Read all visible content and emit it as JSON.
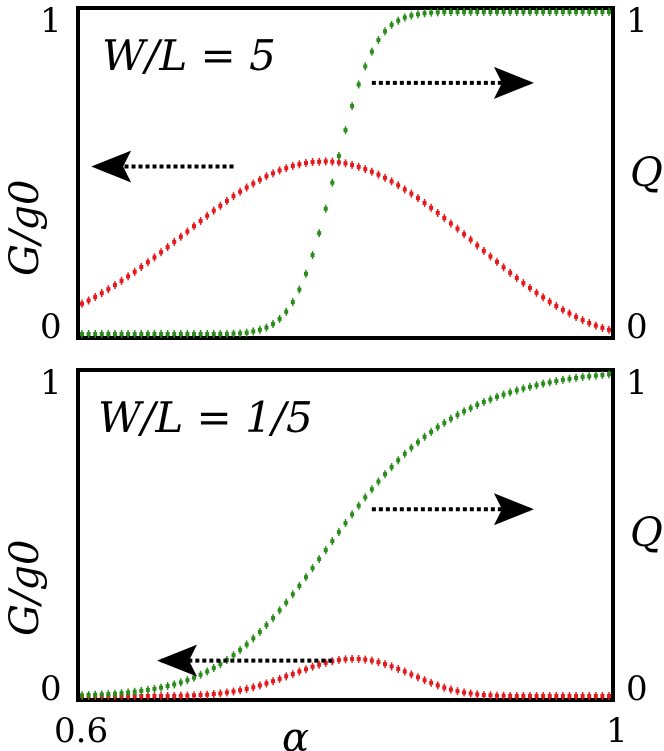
{
  "figure": {
    "x_ticks": [
      "0.6",
      "1"
    ],
    "x_label": "α",
    "xlim": [
      0.6,
      1.0
    ]
  },
  "chart_data": [
    {
      "type": "scatter",
      "panel": "top",
      "annotation": "W/L = 5",
      "ylabel_left": "G/g0",
      "ylabel_right": "Q",
      "left_ticks": [
        "0",
        "1"
      ],
      "right_ticks": [
        "0",
        "1"
      ],
      "ylim": [
        0,
        1
      ],
      "colors": {
        "G": "#e41a1c",
        "Q": "#2a8c1a"
      },
      "arrows": [
        {
          "series": "G",
          "direction": "left",
          "from": [
            0.715,
            0.52
          ],
          "to": [
            0.61,
            0.52
          ]
        },
        {
          "series": "Q",
          "direction": "right",
          "from": [
            0.82,
            0.78
          ],
          "to": [
            0.94,
            0.78
          ]
        }
      ],
      "series": [
        {
          "key": "G",
          "x": [
            0.6,
            0.605,
            0.61,
            0.615,
            0.62,
            0.625,
            0.63,
            0.635,
            0.64,
            0.645,
            0.65,
            0.655,
            0.66,
            0.665,
            0.67,
            0.675,
            0.68,
            0.685,
            0.69,
            0.695,
            0.7,
            0.705,
            0.71,
            0.715,
            0.72,
            0.725,
            0.73,
            0.735,
            0.74,
            0.745,
            0.75,
            0.755,
            0.76,
            0.765,
            0.77,
            0.775,
            0.78,
            0.785,
            0.79,
            0.795,
            0.8,
            0.805,
            0.81,
            0.815,
            0.82,
            0.825,
            0.83,
            0.835,
            0.84,
            0.845,
            0.85,
            0.855,
            0.86,
            0.865,
            0.87,
            0.875,
            0.88,
            0.885,
            0.89,
            0.895,
            0.9,
            0.905,
            0.91,
            0.915,
            0.92,
            0.925,
            0.93,
            0.935,
            0.94,
            0.945,
            0.95,
            0.955,
            0.96,
            0.965,
            0.97,
            0.975,
            0.98,
            0.985,
            0.99,
            0.995,
            1.0
          ],
          "y": [
            0.094,
            0.104,
            0.115,
            0.127,
            0.139,
            0.152,
            0.165,
            0.179,
            0.193,
            0.208,
            0.223,
            0.238,
            0.254,
            0.27,
            0.286,
            0.302,
            0.318,
            0.335,
            0.351,
            0.367,
            0.383,
            0.398,
            0.413,
            0.428,
            0.442,
            0.455,
            0.467,
            0.479,
            0.49,
            0.499,
            0.508,
            0.515,
            0.522,
            0.527,
            0.531,
            0.534,
            0.535,
            0.536,
            0.535,
            0.533,
            0.53,
            0.525,
            0.519,
            0.512,
            0.504,
            0.495,
            0.485,
            0.474,
            0.462,
            0.449,
            0.436,
            0.422,
            0.407,
            0.392,
            0.376,
            0.36,
            0.343,
            0.327,
            0.31,
            0.293,
            0.275,
            0.258,
            0.241,
            0.224,
            0.207,
            0.19,
            0.174,
            0.158,
            0.143,
            0.128,
            0.114,
            0.1,
            0.087,
            0.075,
            0.064,
            0.053,
            0.043,
            0.034,
            0.026,
            0.019,
            0.013
          ]
        },
        {
          "key": "Q",
          "x": [
            0.6,
            0.605,
            0.61,
            0.615,
            0.62,
            0.625,
            0.63,
            0.635,
            0.64,
            0.645,
            0.65,
            0.655,
            0.66,
            0.665,
            0.67,
            0.675,
            0.68,
            0.685,
            0.69,
            0.695,
            0.7,
            0.705,
            0.71,
            0.715,
            0.72,
            0.725,
            0.73,
            0.735,
            0.74,
            0.745,
            0.75,
            0.755,
            0.76,
            0.765,
            0.77,
            0.775,
            0.78,
            0.785,
            0.79,
            0.795,
            0.8,
            0.805,
            0.81,
            0.815,
            0.82,
            0.825,
            0.83,
            0.835,
            0.84,
            0.845,
            0.85,
            0.855,
            0.86,
            0.865,
            0.87,
            0.875,
            0.88,
            0.885,
            0.89,
            0.895,
            0.9,
            0.905,
            0.91,
            0.915,
            0.92,
            0.925,
            0.93,
            0.935,
            0.94,
            0.945,
            0.95,
            0.955,
            0.96,
            0.965,
            0.97,
            0.975,
            0.98,
            0.985,
            0.99,
            0.995,
            1.0
          ],
          "y": [
            0.0,
            0.0,
            0.0,
            0.0,
            0.0,
            0.0,
            0.0,
            0.0,
            0.0,
            0.0,
            0.0,
            0.0,
            0.0,
            0.0,
            0.0,
            0.0,
            0.0,
            0.0,
            0.0,
            0.0,
            0.0,
            0.0,
            0.0,
            0.001,
            0.002,
            0.004,
            0.008,
            0.013,
            0.02,
            0.031,
            0.047,
            0.069,
            0.099,
            0.138,
            0.187,
            0.245,
            0.313,
            0.389,
            0.47,
            0.553,
            0.633,
            0.708,
            0.775,
            0.831,
            0.877,
            0.913,
            0.94,
            0.96,
            0.973,
            0.983,
            0.989,
            0.993,
            0.996,
            0.998,
            0.999,
            1.0,
            1.0,
            1.0,
            1.0,
            1.0,
            1.0,
            1.0,
            1.0,
            1.0,
            1.0,
            1.0,
            1.0,
            1.0,
            1.0,
            1.0,
            1.0,
            1.0,
            1.0,
            1.0,
            1.0,
            1.0,
            1.0,
            1.0,
            1.0,
            1.0,
            1.0
          ]
        }
      ]
    },
    {
      "type": "scatter",
      "panel": "bottom",
      "annotation": "W/L = 1/5",
      "ylabel_left": "G/g0",
      "ylabel_right": "Q",
      "left_ticks": [
        "0",
        "1"
      ],
      "right_ticks": [
        "0",
        "1"
      ],
      "ylim": [
        0,
        1
      ],
      "colors": {
        "G": "#e41a1c",
        "Q": "#2a8c1a"
      },
      "arrows": [
        {
          "series": "G",
          "direction": "left",
          "from": [
            0.79,
            0.11
          ],
          "to": [
            0.66,
            0.11
          ]
        },
        {
          "series": "Q",
          "direction": "right",
          "from": [
            0.82,
            0.58
          ],
          "to": [
            0.94,
            0.58
          ]
        }
      ],
      "series": [
        {
          "key": "G",
          "x": [
            0.6,
            0.605,
            0.61,
            0.615,
            0.62,
            0.625,
            0.63,
            0.635,
            0.64,
            0.645,
            0.65,
            0.655,
            0.66,
            0.665,
            0.67,
            0.675,
            0.68,
            0.685,
            0.69,
            0.695,
            0.7,
            0.705,
            0.71,
            0.715,
            0.72,
            0.725,
            0.73,
            0.735,
            0.74,
            0.745,
            0.75,
            0.755,
            0.76,
            0.765,
            0.77,
            0.775,
            0.78,
            0.785,
            0.79,
            0.795,
            0.8,
            0.805,
            0.81,
            0.815,
            0.82,
            0.825,
            0.83,
            0.835,
            0.84,
            0.845,
            0.85,
            0.855,
            0.86,
            0.865,
            0.87,
            0.875,
            0.88,
            0.885,
            0.89,
            0.895,
            0.9,
            0.905,
            0.91,
            0.915,
            0.92,
            0.925,
            0.93,
            0.935,
            0.94,
            0.945,
            0.95,
            0.955,
            0.96,
            0.965,
            0.97,
            0.975,
            0.98,
            0.985,
            0.99,
            0.995,
            1.0
          ],
          "y": [
            0.0,
            0.0,
            0.0,
            0.0,
            0.0,
            0.0,
            0.0,
            0.0,
            0.0,
            0.0,
            0.0,
            0.0,
            0.0,
            0.0,
            0.0,
            0.001,
            0.001,
            0.002,
            0.003,
            0.004,
            0.006,
            0.008,
            0.011,
            0.014,
            0.018,
            0.022,
            0.027,
            0.033,
            0.039,
            0.046,
            0.053,
            0.061,
            0.068,
            0.076,
            0.083,
            0.091,
            0.097,
            0.103,
            0.108,
            0.112,
            0.114,
            0.115,
            0.115,
            0.113,
            0.11,
            0.105,
            0.099,
            0.092,
            0.084,
            0.076,
            0.067,
            0.058,
            0.049,
            0.041,
            0.033,
            0.026,
            0.02,
            0.015,
            0.011,
            0.008,
            0.005,
            0.003,
            0.002,
            0.001,
            0.001,
            0.0,
            0.0,
            0.0,
            0.0,
            0.0,
            0.0,
            0.0,
            0.0,
            0.0,
            0.0,
            0.0,
            0.0,
            0.0,
            0.0,
            0.0,
            0.0
          ]
        },
        {
          "key": "Q",
          "x": [
            0.6,
            0.605,
            0.61,
            0.615,
            0.62,
            0.625,
            0.63,
            0.635,
            0.64,
            0.645,
            0.65,
            0.655,
            0.66,
            0.665,
            0.67,
            0.675,
            0.68,
            0.685,
            0.69,
            0.695,
            0.7,
            0.705,
            0.71,
            0.715,
            0.72,
            0.725,
            0.73,
            0.735,
            0.74,
            0.745,
            0.75,
            0.755,
            0.76,
            0.765,
            0.77,
            0.775,
            0.78,
            0.785,
            0.79,
            0.795,
            0.8,
            0.805,
            0.81,
            0.815,
            0.82,
            0.825,
            0.83,
            0.835,
            0.84,
            0.845,
            0.85,
            0.855,
            0.86,
            0.865,
            0.87,
            0.875,
            0.88,
            0.885,
            0.89,
            0.895,
            0.9,
            0.905,
            0.91,
            0.915,
            0.92,
            0.925,
            0.93,
            0.935,
            0.94,
            0.945,
            0.95,
            0.955,
            0.96,
            0.965,
            0.97,
            0.975,
            0.98,
            0.985,
            0.99,
            0.995,
            1.0
          ],
          "y": [
            0.002,
            0.003,
            0.004,
            0.005,
            0.006,
            0.007,
            0.009,
            0.011,
            0.013,
            0.016,
            0.019,
            0.022,
            0.026,
            0.031,
            0.036,
            0.042,
            0.049,
            0.057,
            0.066,
            0.076,
            0.087,
            0.099,
            0.112,
            0.127,
            0.143,
            0.16,
            0.179,
            0.199,
            0.22,
            0.242,
            0.266,
            0.29,
            0.316,
            0.342,
            0.369,
            0.397,
            0.425,
            0.453,
            0.481,
            0.509,
            0.537,
            0.564,
            0.591,
            0.617,
            0.642,
            0.666,
            0.689,
            0.711,
            0.732,
            0.752,
            0.771,
            0.788,
            0.805,
            0.82,
            0.835,
            0.848,
            0.861,
            0.873,
            0.884,
            0.894,
            0.904,
            0.913,
            0.921,
            0.929,
            0.936,
            0.943,
            0.949,
            0.955,
            0.96,
            0.965,
            0.97,
            0.974,
            0.978,
            0.982,
            0.985,
            0.988,
            0.991,
            0.993,
            0.995,
            0.997,
            0.999
          ]
        }
      ]
    }
  ]
}
